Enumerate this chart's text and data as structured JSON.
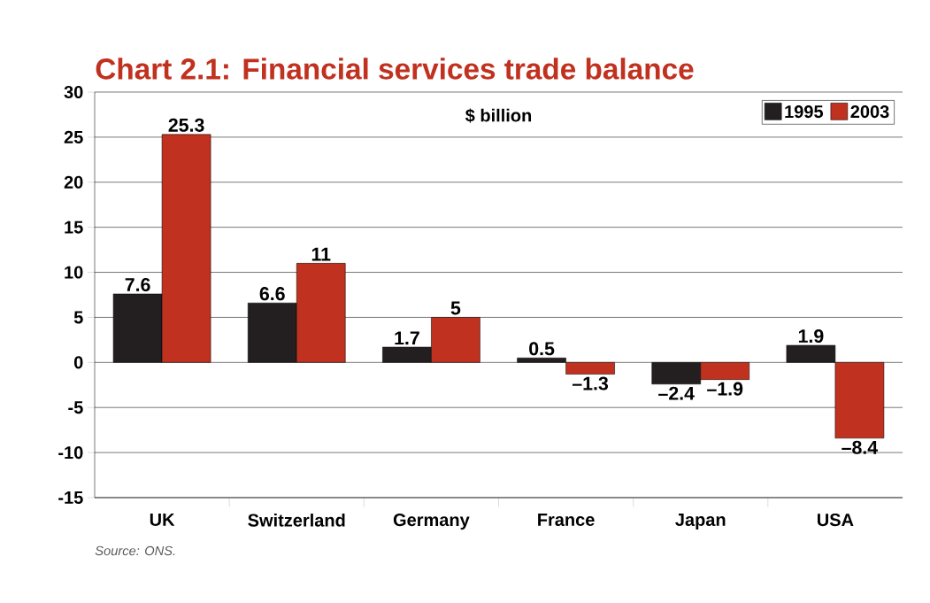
{
  "chart_data": {
    "type": "bar",
    "title": "Chart 2.1: Financial services trade balance",
    "subtitle": "$ billion",
    "categories": [
      "UK",
      "Switzerland",
      "Germany",
      "France",
      "Japan",
      "USA"
    ],
    "series": [
      {
        "name": "1995",
        "color": "#231f20",
        "values": [
          7.6,
          6.6,
          1.7,
          0.5,
          -2.4,
          1.9
        ],
        "value_labels": [
          "7.6",
          "6.6",
          "1.7",
          "0.5",
          "–2.4",
          "1.9"
        ]
      },
      {
        "name": "2003",
        "color": "#c0311f",
        "values": [
          25.3,
          11,
          5,
          -1.3,
          -1.9,
          -8.4
        ],
        "value_labels": [
          "25.3",
          "11",
          "5",
          "–1.3",
          "–1.9",
          "–8.4"
        ]
      }
    ],
    "ylim": [
      -15,
      30
    ],
    "yticks": [
      -15,
      -10,
      -5,
      0,
      5,
      10,
      15,
      20,
      25,
      30
    ],
    "grid": "y",
    "legend": "top right",
    "annotations": [
      "Source: ONS."
    ]
  }
}
